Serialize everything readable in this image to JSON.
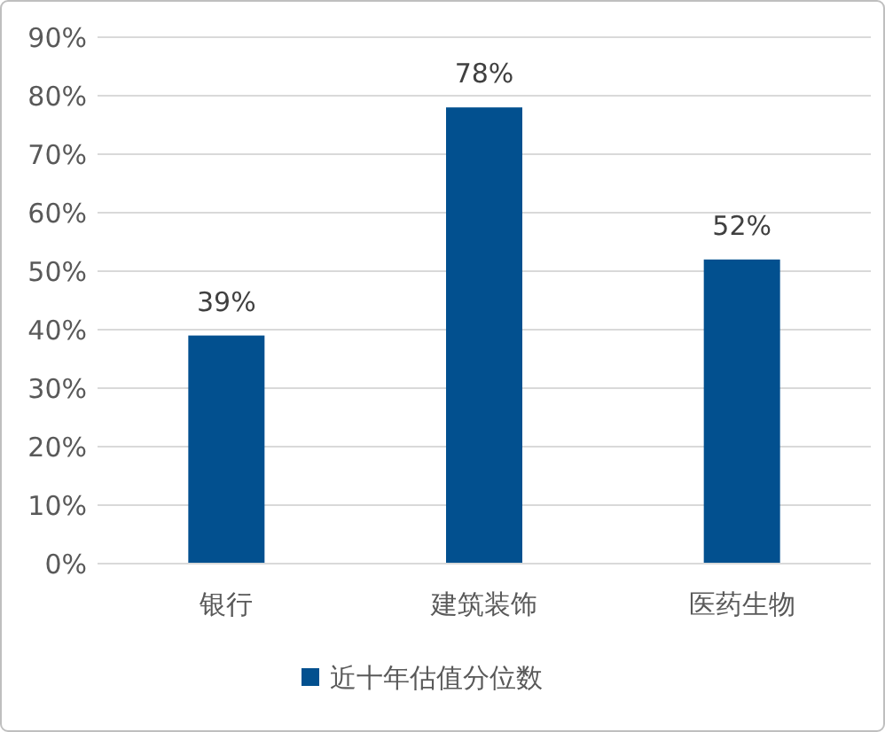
{
  "chart_data": {
    "type": "bar",
    "categories": [
      "银行",
      "建筑装饰",
      "医药生物"
    ],
    "series": [
      {
        "name": "近十年估值分位数",
        "color": "#02508f",
        "values": [
          39,
          78,
          52
        ],
        "value_labels": [
          "39%",
          "78%",
          "52%"
        ]
      }
    ],
    "ylim": [
      0,
      90
    ],
    "yticks": [
      {
        "value": 0,
        "label": "0%"
      },
      {
        "value": 10,
        "label": "10%"
      },
      {
        "value": 20,
        "label": "20%"
      },
      {
        "value": 30,
        "label": "30%"
      },
      {
        "value": 40,
        "label": "40%"
      },
      {
        "value": 50,
        "label": "50%"
      },
      {
        "value": 60,
        "label": "60%"
      },
      {
        "value": 70,
        "label": "70%"
      },
      {
        "value": 80,
        "label": "80%"
      },
      {
        "value": 90,
        "label": "90%"
      }
    ],
    "grid": "y",
    "legend": "bottom"
  }
}
